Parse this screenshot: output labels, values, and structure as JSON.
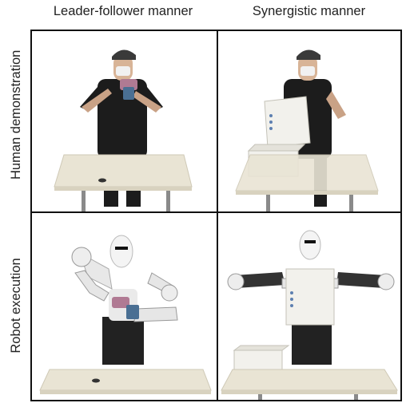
{
  "columns": [
    "Leader-follower manner",
    "Synergistic manner"
  ],
  "rows": [
    "Human demonstration",
    "Robot execution"
  ]
}
